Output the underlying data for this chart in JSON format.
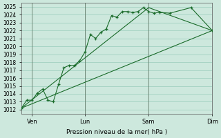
{
  "bg_color": "#cde8dd",
  "grid_color": "#99ccbb",
  "line_color": "#1a6b2a",
  "ylim": [
    1011.5,
    1025.5
  ],
  "yticks": [
    1012,
    1013,
    1014,
    1015,
    1016,
    1017,
    1018,
    1019,
    1020,
    1021,
    1022,
    1023,
    1024,
    1025
  ],
  "xlabel": "Pression niveau de la mer( hPa )",
  "xlim": [
    0,
    18
  ],
  "xtick_positions": [
    1,
    6,
    12,
    18
  ],
  "xtick_labels": [
    "Ven",
    "Lun",
    "Sam",
    "Dim"
  ],
  "vlines_x": [
    1,
    6,
    12,
    18
  ],
  "line1_x": [
    0,
    0.5,
    1.0,
    1.5,
    2.0,
    2.5,
    3.0,
    3.5,
    4.0,
    4.5,
    5.0,
    5.5,
    6.0,
    6.5,
    7.0,
    7.5,
    8.0,
    8.5,
    9.0,
    9.5,
    10.0,
    10.5,
    11.0,
    11.5,
    12.0,
    12.5,
    13.0,
    14.0,
    16.0,
    18.0
  ],
  "line1_y": [
    1012.2,
    1013.2,
    1013.2,
    1014.1,
    1014.6,
    1013.2,
    1013.0,
    1015.2,
    1017.3,
    1017.6,
    1017.6,
    1018.2,
    1019.3,
    1021.5,
    1021.0,
    1021.8,
    1022.2,
    1023.9,
    1023.7,
    1024.4,
    1024.4,
    1024.3,
    1024.4,
    1024.9,
    1024.4,
    1024.2,
    1024.3,
    1024.2,
    1024.9,
    1022.0
  ],
  "line2_x": [
    0,
    18
  ],
  "line2_y": [
    1012.2,
    1022.0
  ],
  "line3_x": [
    0,
    12.0,
    18.0
  ],
  "line3_y": [
    1012.2,
    1024.9,
    1022.0
  ]
}
